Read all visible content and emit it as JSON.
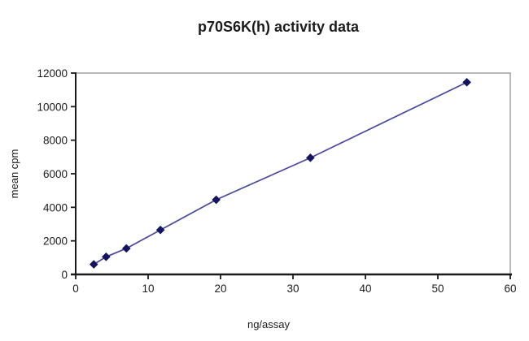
{
  "title": "p70S6K(h) activity data",
  "colors": {
    "line": "#4747a1",
    "marker": "#14145f",
    "axis": "#1a1a1a",
    "plot_border": "#9b9b9b",
    "text": "#1b1b1b",
    "background": "#ffffff"
  },
  "chart_data": {
    "type": "line",
    "title": "p70S6K(h) activity data",
    "xlabel": "ng/assay",
    "ylabel": "mean cpm",
    "x": [
      2.5,
      4.2,
      7,
      11.7,
      19.4,
      32.4,
      54
    ],
    "y": [
      600,
      1050,
      1550,
      2650,
      4450,
      6950,
      11450
    ],
    "series_name": "p70S6K(h) activity",
    "xlim": [
      0,
      60
    ],
    "ylim": [
      0,
      12000
    ],
    "x_ticks": [
      0,
      10,
      20,
      30,
      40,
      50,
      60
    ],
    "y_ticks": [
      0,
      2000,
      4000,
      6000,
      8000,
      10000,
      12000
    ],
    "grid": false,
    "legend": false,
    "marker": "diamond"
  }
}
